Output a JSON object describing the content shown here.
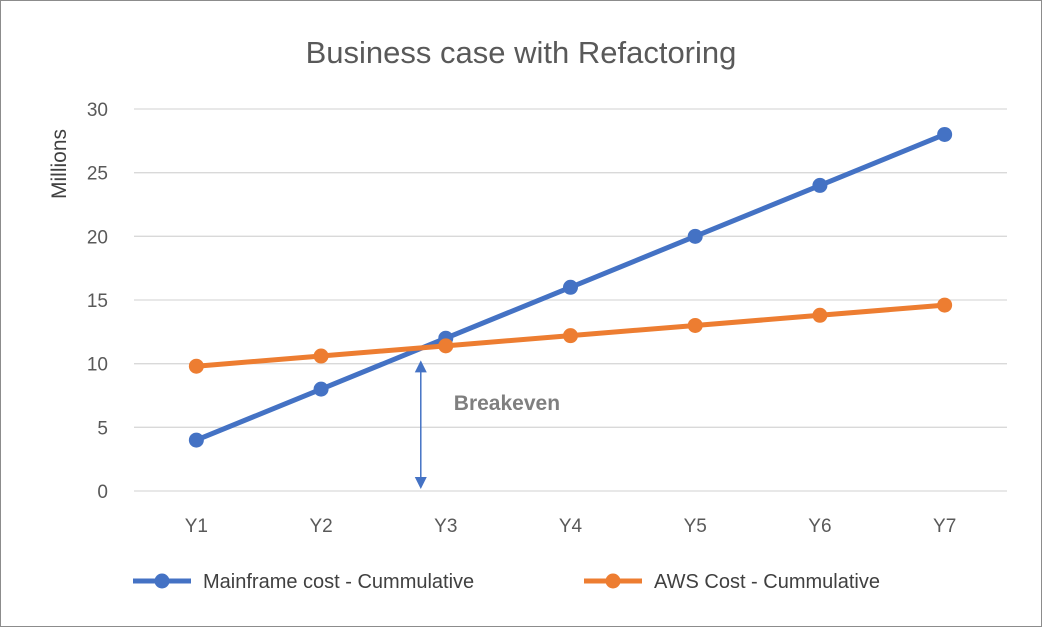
{
  "chart_data": {
    "type": "line",
    "title": "Business case with Refactoring",
    "xlabel": "",
    "ylabel": "Millions",
    "categories": [
      "Y1",
      "Y2",
      "Y3",
      "Y4",
      "Y5",
      "Y6",
      "Y7"
    ],
    "yticks": [
      0,
      5,
      10,
      15,
      20,
      25,
      30
    ],
    "ylim": [
      0,
      30
    ],
    "grid": true,
    "legend": "bottom",
    "series": [
      {
        "name": "Mainframe cost - Cummulative",
        "color": "#4472C4",
        "values": [
          4,
          8,
          12,
          16,
          20,
          24,
          28
        ]
      },
      {
        "name": "AWS Cost - Cummulative",
        "color": "#ED7D31",
        "values": [
          9.8,
          10.6,
          11.4,
          12.2,
          13,
          13.8,
          14.6
        ]
      }
    ],
    "annotations": [
      {
        "text": "Breakeven",
        "x": "Y3",
        "y_from": 0,
        "y_to": 11.2,
        "color": "#4472C4"
      }
    ]
  }
}
